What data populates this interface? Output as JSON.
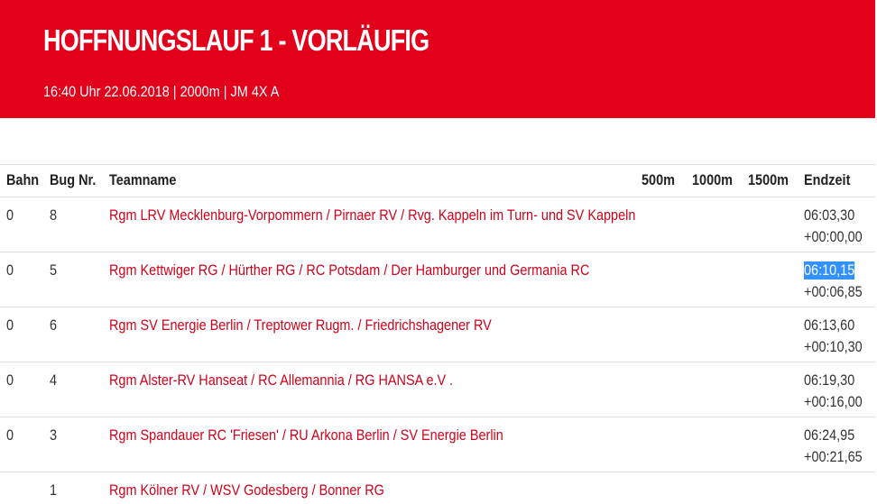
{
  "header": {
    "title": "HOFFNUNGSLAUF 1 - VORLÄUFIG",
    "subtitle": "16:40 Uhr 22.06.2018 | 2000m | JM 4X A"
  },
  "table": {
    "columns": [
      "Bahn",
      "Bug Nr.",
      "Teamname",
      "500m",
      "1000m",
      "1500m",
      "Endzeit"
    ],
    "rows": [
      {
        "bahn": "0",
        "bug": "8",
        "team": "Rgm LRV Mecklenburg-Vorpommern / Pirnaer RV / Rvg. Kappeln im Turn- und SV Kappeln",
        "time": "06:03,30",
        "diff": "+00:00,00"
      },
      {
        "bahn": "0",
        "bug": "5",
        "team": "Rgm Kettwiger RG / Hürther RG / RC Potsdam / Der Hamburger und Germania RC",
        "time": "06:10,15",
        "diff": "+00:06,85"
      },
      {
        "bahn": "0",
        "bug": "6",
        "team": "Rgm SV Energie Berlin / Treptower Rugm. / Friedrichshagener RV",
        "time": "06:13,60",
        "diff": "+00:10,30"
      },
      {
        "bahn": "0",
        "bug": "4",
        "team": "Rgm Alster-RV Hanseat / RC Allemannia / RG HANSA e.V .",
        "time": "06:19,30",
        "diff": "+00:16,00"
      },
      {
        "bahn": "0",
        "bug": "3",
        "team": "Rgm Spandauer RC 'Friesen' / RU Arkona Berlin / SV Energie Berlin",
        "time": "06:24,95",
        "diff": "+00:21,65"
      },
      {
        "bug": "1",
        "team": "Rgm Kölner RV / WSV Godesberg / Bonner RG"
      }
    ]
  }
}
